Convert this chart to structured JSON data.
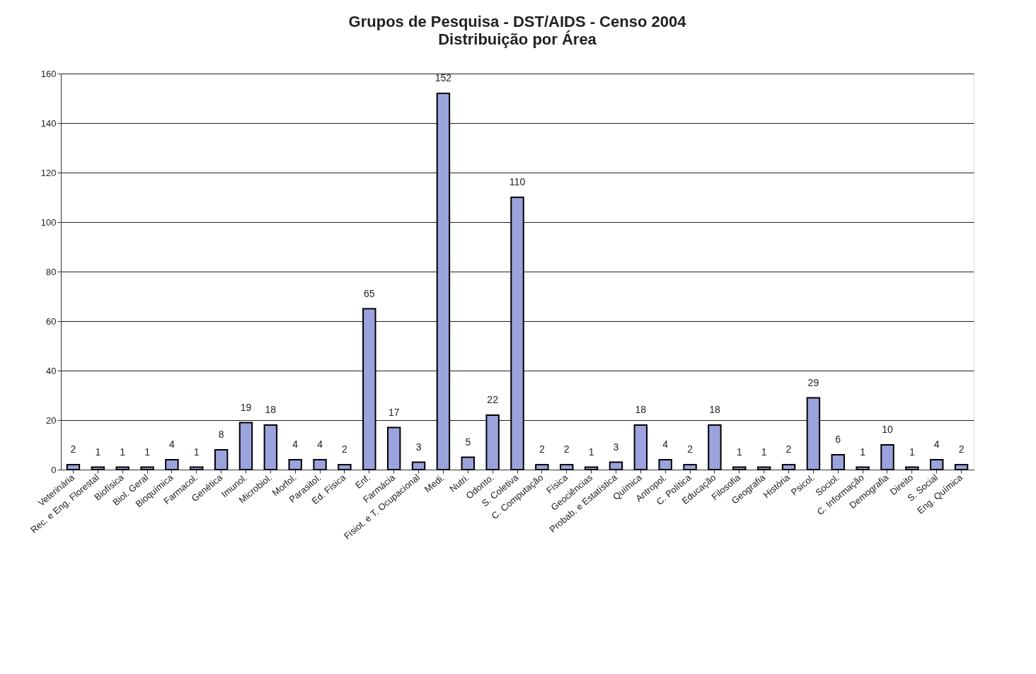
{
  "chart_data": {
    "type": "bar",
    "title": "Grupos de Pesquisa - DST/AIDS - Censo 2004",
    "subtitle": "Distribuição por Área",
    "categories": [
      "Veterinária",
      "Rec. e Eng. Florestal",
      "Biofísica",
      "Biol. Geral",
      "Bioquímica",
      "Farmacol.",
      "Genética",
      "Imunol.",
      "Microbiol.",
      "Morfol.",
      "Parasitol.",
      "Ed. Física",
      "Enf.",
      "Farmácia",
      "Fisiot. e T. Ocupacional",
      "Medi.",
      "Nutri.",
      "Odonto.",
      "S. Coletiva",
      "C. Computação",
      "Física",
      "Geociências",
      "Probab. e Estatística",
      "Química",
      "Antropol.",
      "C. Política",
      "Educação",
      "Filosofia",
      "Geografia",
      "História",
      "Psicol.",
      "Sociol.",
      "C. Informação",
      "Demografia",
      "Direito",
      "S. Social",
      "Eng. Química"
    ],
    "values": [
      2,
      1,
      1,
      1,
      4,
      1,
      8,
      19,
      18,
      4,
      4,
      2,
      65,
      17,
      3,
      152,
      5,
      22,
      110,
      2,
      2,
      1,
      3,
      18,
      4,
      2,
      18,
      1,
      1,
      2,
      29,
      6,
      1,
      10,
      1,
      4,
      2
    ],
    "color": "#9aa3dc",
    "ylim": [
      0,
      160
    ],
    "yticks": [
      0,
      20,
      40,
      60,
      80,
      100,
      120,
      140,
      160
    ],
    "grid": "y",
    "data_labels": true
  }
}
